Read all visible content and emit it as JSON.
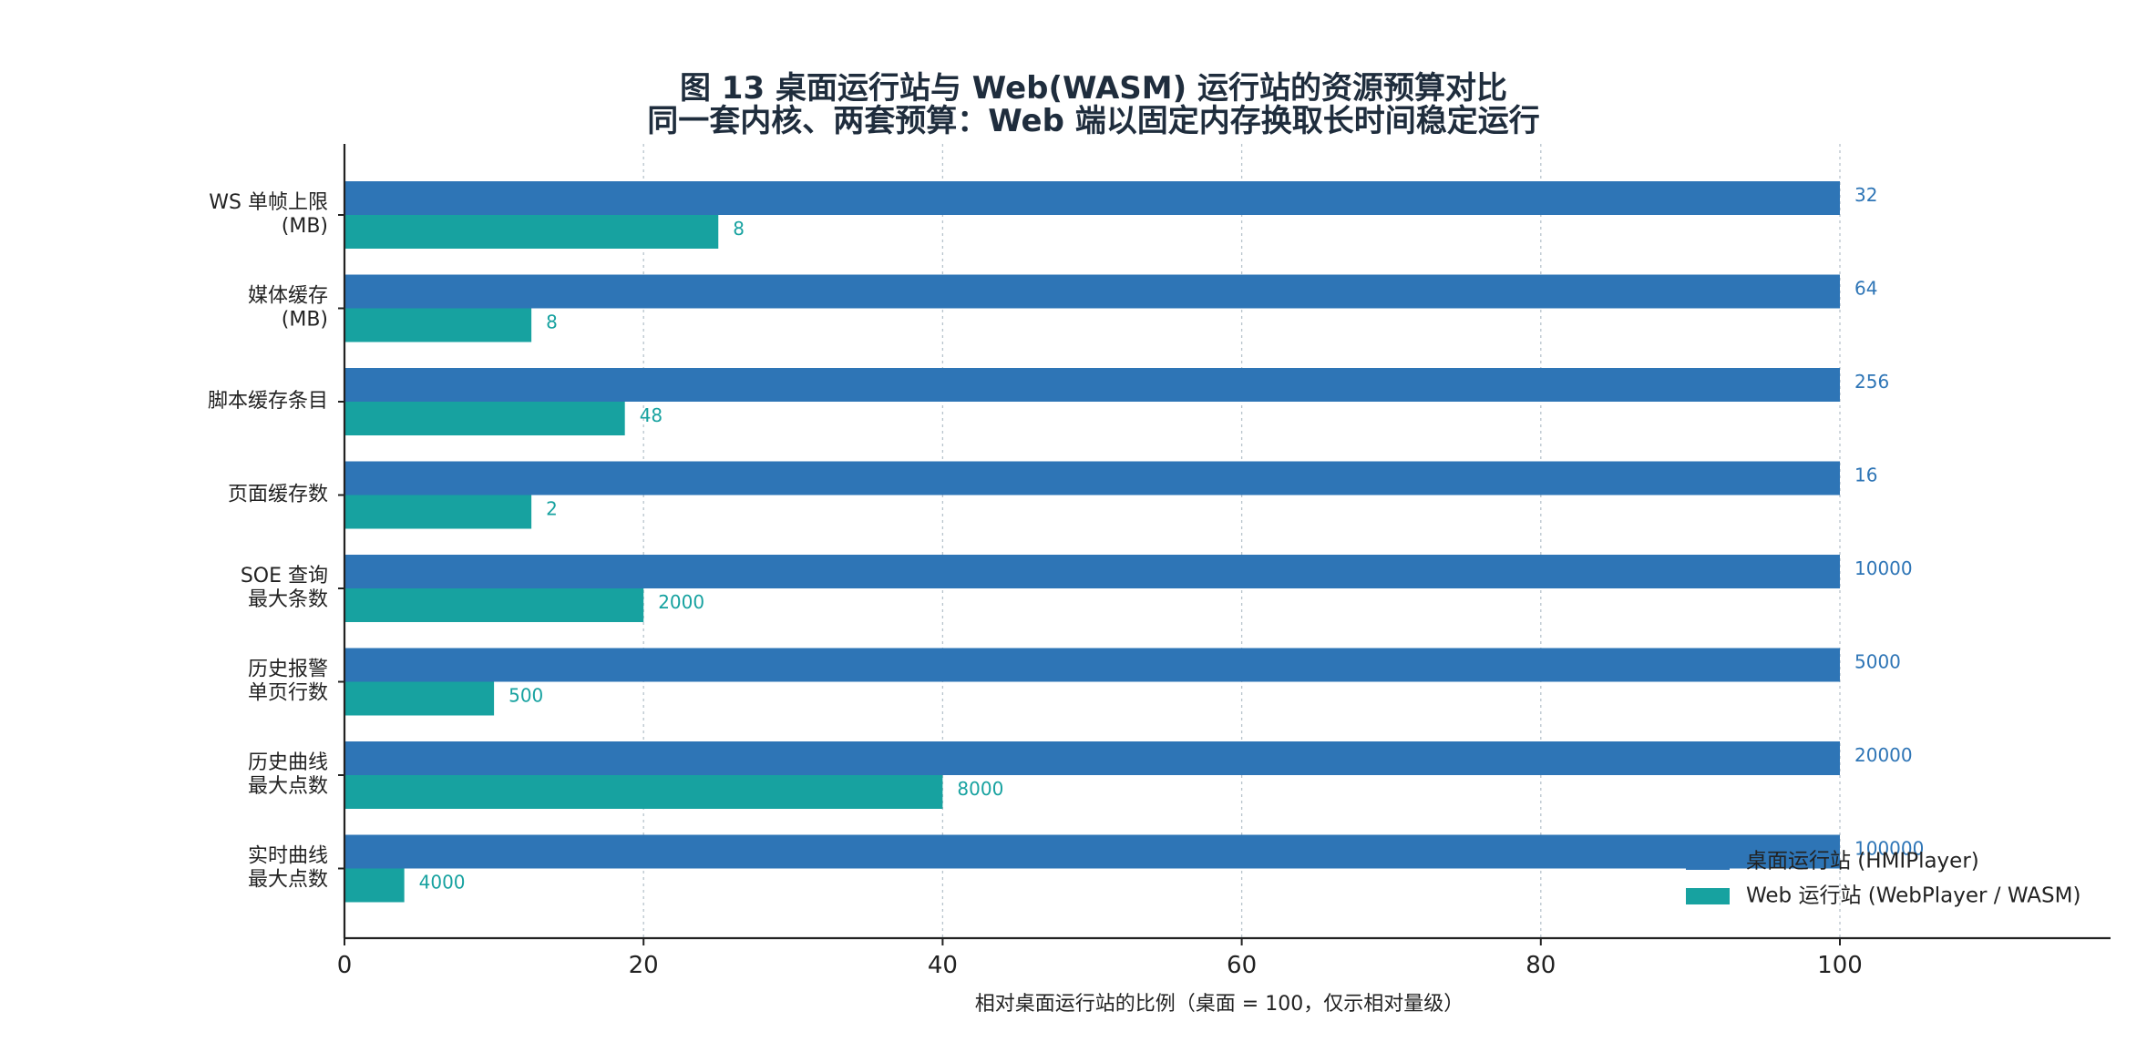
{
  "chart_data": {
    "type": "bar",
    "orientation": "horizontal",
    "title": "图  13  桌面运行站与 Web(WASM) 运行站的资源预算对比",
    "subtitle": "同一套内核、两套预算：Web 端以固定内存换取长时间稳定运行",
    "xlabel": "相对桌面运行站的比例（桌面 = 100，仅示相对量级）",
    "xlim": [
      0,
      100
    ],
    "xticks": [
      "0",
      "20",
      "40",
      "60",
      "80",
      "100"
    ],
    "grid": "vertical-dotted",
    "legend_position": "bottom-right",
    "categories": [
      [
        "WS 单帧上限",
        "(MB)"
      ],
      [
        "媒体缓存",
        "(MB)"
      ],
      [
        "脚本缓存条目"
      ],
      [
        "页面缓存数"
      ],
      [
        "SOE 查询",
        "最大条数"
      ],
      [
        "历史报警",
        "单页行数"
      ],
      [
        "历史曲线",
        "最大点数"
      ],
      [
        "实时曲线",
        "最大点数"
      ]
    ],
    "series": [
      {
        "name": "桌面运行站 (HMIPlayer)",
        "color": "#2e75b6",
        "relative": [
          100,
          100,
          100,
          100,
          100,
          100,
          100,
          100
        ],
        "labels": [
          "32",
          "64",
          "256",
          "16",
          "10000",
          "5000",
          "20000",
          "100000"
        ]
      },
      {
        "name": "Web 运行站 (WebPlayer / WASM)",
        "color": "#17a2a0",
        "relative": [
          25,
          12.5,
          18.75,
          12.5,
          20,
          10,
          40,
          4
        ],
        "labels": [
          "8",
          "8",
          "48",
          "2",
          "2000",
          "500",
          "8000",
          "4000"
        ]
      }
    ]
  }
}
